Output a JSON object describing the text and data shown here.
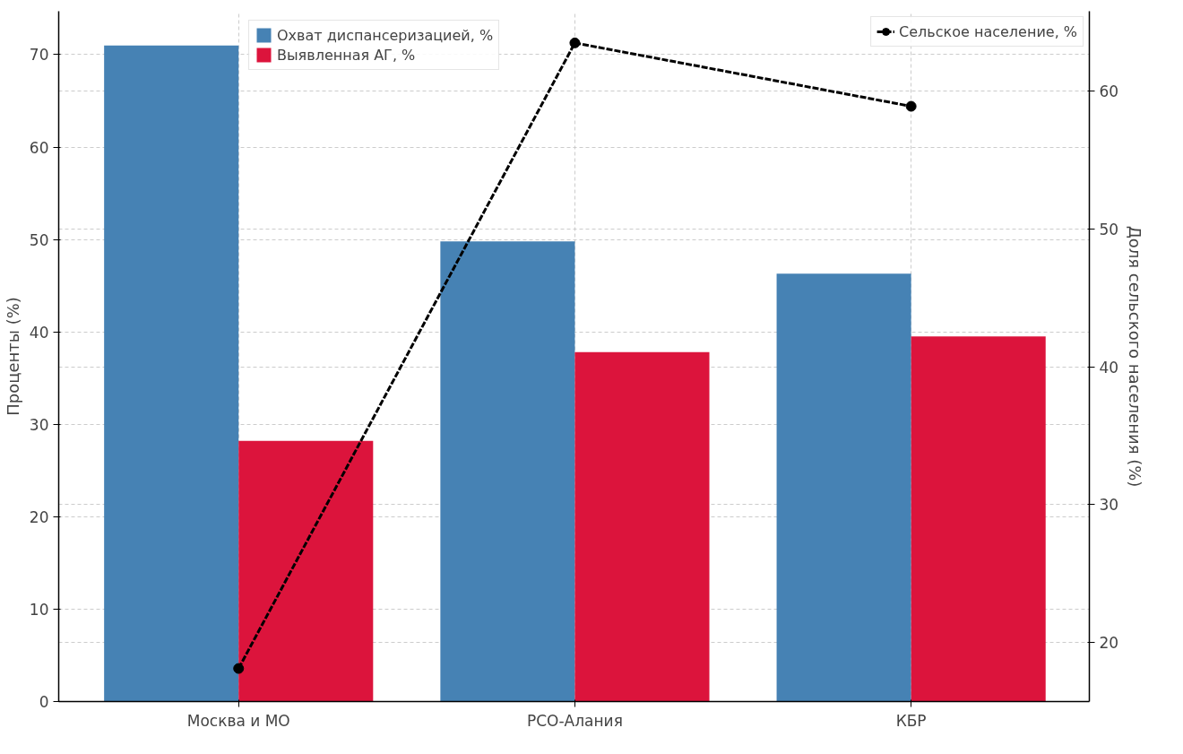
{
  "chart_data": {
    "type": "bar",
    "ylabel": "Проценты (%)",
    "y2label": "Доля сельского населения (%)",
    "categories": [
      "Москва и МО",
      "РСО-Алания",
      "КБР"
    ],
    "series": [
      {
        "name": "Охват диспансеризацией, %",
        "color": "#4682b4",
        "values": [
          71,
          49.8,
          46.3
        ]
      },
      {
        "name": "Выявленная АГ, %",
        "color": "#dc143c",
        "values": [
          28.2,
          37.8,
          39.5
        ]
      },
      {
        "name": "Сельское население, %",
        "type": "line",
        "axis": "y2",
        "color": "#000000",
        "marker": "circle",
        "line_style": "dashed",
        "values": [
          18.1,
          63.5,
          58.9
        ]
      }
    ],
    "ylim": [
      0,
      74.7
    ],
    "yticks": [
      0,
      10,
      20,
      30,
      40,
      50,
      60,
      70
    ],
    "y2lim": [
      15.7,
      65.8
    ],
    "y2ticks": [
      20,
      30,
      40,
      50,
      60
    ],
    "grid": true,
    "legend": "top"
  }
}
